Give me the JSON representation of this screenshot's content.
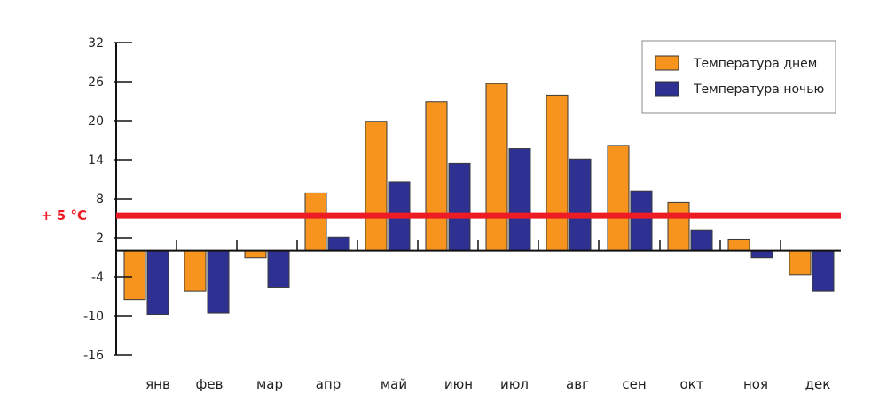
{
  "chart_data": {
    "type": "bar",
    "categories": [
      "янв",
      "фев",
      "мар",
      "апр",
      "май",
      "июн",
      "июл",
      "авг",
      "сен",
      "окт",
      "ноя",
      "дек"
    ],
    "series": [
      {
        "name": "Температура днем",
        "color": "#F7941E",
        "values": [
          -7.5,
          -6.2,
          -1.1,
          8.9,
          19.9,
          22.9,
          25.7,
          23.9,
          16.2,
          7.4,
          1.8,
          -3.7
        ]
      },
      {
        "name": "Температура ночью",
        "color": "#2E3192",
        "values": [
          -9.8,
          -9.6,
          -5.7,
          2.1,
          10.6,
          13.4,
          15.7,
          14.1,
          9.2,
          3.2,
          -1.1,
          -6.2
        ]
      }
    ],
    "y_ticks": [
      "32",
      "26",
      "20",
      "14",
      "8",
      "2",
      "-4",
      "-10",
      "-16"
    ],
    "ylim": [
      -16,
      32
    ],
    "reference_line": {
      "value": 5.4,
      "label": "+ 5 °C",
      "color": "#ED1C24"
    },
    "legend_position": "top-right",
    "grid": false
  }
}
